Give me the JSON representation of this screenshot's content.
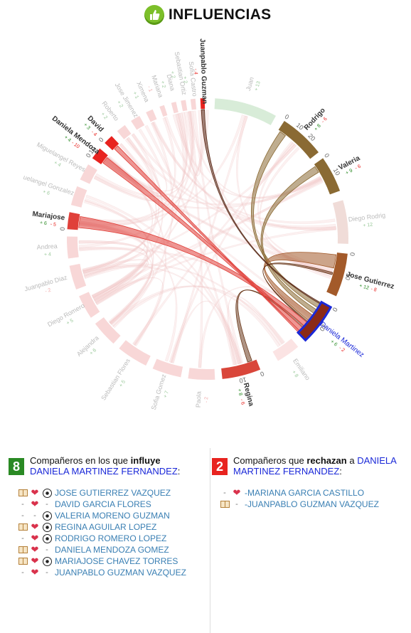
{
  "header": {
    "title": "INFLUENCIAS"
  },
  "chart_data": {
    "type": "chord",
    "focus": {
      "name": "Daniela Martinez",
      "plus": "+ 6",
      "minus": "- 2"
    },
    "nodes": [
      {
        "name": "Juan",
        "plus": "+ 13",
        "minus": "",
        "highlight": false
      },
      {
        "name": "Rodrigo",
        "plus": "+ 8",
        "minus": "- 6",
        "highlight": true
      },
      {
        "name": "Valeria",
        "plus": "+ 9",
        "minus": "- 6",
        "highlight": true
      },
      {
        "name": "Diego Rodrig",
        "plus": "+ 12",
        "minus": "",
        "highlight": false
      },
      {
        "name": "Jose Gutierrez",
        "plus": "+ 12",
        "minus": "- 8",
        "highlight": true
      },
      {
        "name": "Daniela Martinez",
        "plus": "+ 6",
        "minus": "- 2",
        "highlight": true
      },
      {
        "name": "Emiliano",
        "plus": "+ 8",
        "minus": "",
        "highlight": false
      },
      {
        "name": "Regina",
        "plus": "+ 8",
        "minus": "- 6",
        "highlight": true
      },
      {
        "name": "Paola",
        "plus": "",
        "minus": "- 2",
        "highlight": false
      },
      {
        "name": "Sofia Gomez",
        "plus": "+ 7",
        "minus": "",
        "highlight": false
      },
      {
        "name": "Sebastian Flores",
        "plus": "+ 5",
        "minus": "",
        "highlight": false
      },
      {
        "name": "Alejandra",
        "plus": "+ 6",
        "minus": "",
        "highlight": false
      },
      {
        "name": "Diego Romero",
        "plus": "+ 5",
        "minus": "",
        "highlight": false
      },
      {
        "name": "Juanpablo Diaz",
        "plus": "",
        "minus": "- 2",
        "highlight": false
      },
      {
        "name": "Andrea",
        "plus": "+ 4",
        "minus": "",
        "highlight": false
      },
      {
        "name": "Mariajose",
        "plus": "+ 6",
        "minus": "- 5",
        "highlight": true
      },
      {
        "name": "uelangel Gonzalez",
        "plus": "+ 6",
        "minus": "",
        "highlight": false
      },
      {
        "name": "Miguelangel Reyes",
        "plus": "+ 4",
        "minus": "",
        "highlight": false
      },
      {
        "name": "Daniela Mendoza",
        "plus": "+ 4",
        "minus": "- 10",
        "highlight": true
      },
      {
        "name": "David",
        "plus": "+ 3",
        "minus": "- 4",
        "highlight": true
      },
      {
        "name": "Roberto",
        "plus": "+ 2",
        "minus": "",
        "highlight": false
      },
      {
        "name": "Jose Jimenez",
        "plus": "+ 2",
        "minus": "",
        "highlight": false
      },
      {
        "name": "Ximena",
        "plus": "+ 1",
        "minus": "",
        "highlight": false
      },
      {
        "name": "Mariana",
        "plus": "",
        "minus": "- 1",
        "highlight": false
      },
      {
        "name": "Diana",
        "plus": "+ 2",
        "minus": "",
        "highlight": false
      },
      {
        "name": "Sebastian Ortiz",
        "plus": "+ 2",
        "minus": "",
        "highlight": false
      },
      {
        "name": "Sofia Castro",
        "plus": "+ 2",
        "minus": "",
        "highlight": false
      },
      {
        "name": "Juanpablo Guzman",
        "plus": "",
        "minus": "- 4",
        "highlight": true
      }
    ],
    "ticks": [
      {
        "node": "Rodrigo",
        "labels": [
          "0",
          "10",
          "20"
        ]
      },
      {
        "node": "Valeria",
        "labels": [
          "0",
          "10"
        ]
      },
      {
        "node": "Jose Gutierrez",
        "labels": [
          "0",
          "10"
        ]
      },
      {
        "node": "Daniela Martinez",
        "labels": [
          "0",
          "10"
        ]
      },
      {
        "node": "Regina",
        "labels": [
          "0",
          "10"
        ]
      },
      {
        "node": "Mariajose",
        "labels": [
          "0"
        ]
      },
      {
        "node": "Daniela Mendoza",
        "labels": [
          "0",
          "10"
        ]
      },
      {
        "node": "David",
        "labels": [
          "0"
        ]
      }
    ]
  },
  "left_panel": {
    "count": "8",
    "prefix": "Compañeros en los que ",
    "keyword": "influye",
    "student": "DANIELA MARTINEZ FERNANDEZ",
    "suffix": ":",
    "items": [
      {
        "icons": [
          "book-icon",
          "heart-icon",
          "ball-icon"
        ],
        "name": "JOSE GUTIERREZ VAZQUEZ"
      },
      {
        "icons": [
          "dash",
          "heart-icon",
          "dash"
        ],
        "name": "DAVID GARCIA FLORES"
      },
      {
        "icons": [
          "dash",
          "dash",
          "ball-icon"
        ],
        "name": "VALERIA MORENO GUZMAN"
      },
      {
        "icons": [
          "book-icon",
          "heart-icon",
          "ball-icon"
        ],
        "name": "REGINA AGUILAR LOPEZ"
      },
      {
        "icons": [
          "dash",
          "heart-icon",
          "ball-icon"
        ],
        "name": "RODRIGO ROMERO LOPEZ"
      },
      {
        "icons": [
          "book-icon",
          "heart-icon",
          "dash"
        ],
        "name": "DANIELA MENDOZA GOMEZ"
      },
      {
        "icons": [
          "book-icon",
          "heart-icon",
          "ball-icon"
        ],
        "name": "MARIAJOSE CHAVEZ TORRES"
      },
      {
        "icons": [
          "dash",
          "heart-icon",
          "dash"
        ],
        "name": "JUANPABLO GUZMAN VAZQUEZ"
      }
    ]
  },
  "right_panel": {
    "count": "2",
    "prefix": "Compañeros que ",
    "keyword": "rechazan",
    "connector": " a ",
    "student": "DANIELA MARTINEZ FERNANDEZ",
    "suffix": ":",
    "items": [
      {
        "icons": [
          "dash",
          "heart-icon"
        ],
        "name": "-MARIANA GARCIA CASTILLO"
      },
      {
        "icons": [
          "book-icon",
          "dash"
        ],
        "name": "-JUANPABLO GUZMAN VAZQUEZ"
      }
    ]
  },
  "colors": {
    "influence_brown": "#8a6a33",
    "reject_red": "#e0403a",
    "faded_pink": "#f8d7d7",
    "faded_green": "#d8ecd8",
    "focus_outline": "#1a28d8",
    "plus_green": "#2a8a24",
    "minus_red": "#e8231f"
  }
}
